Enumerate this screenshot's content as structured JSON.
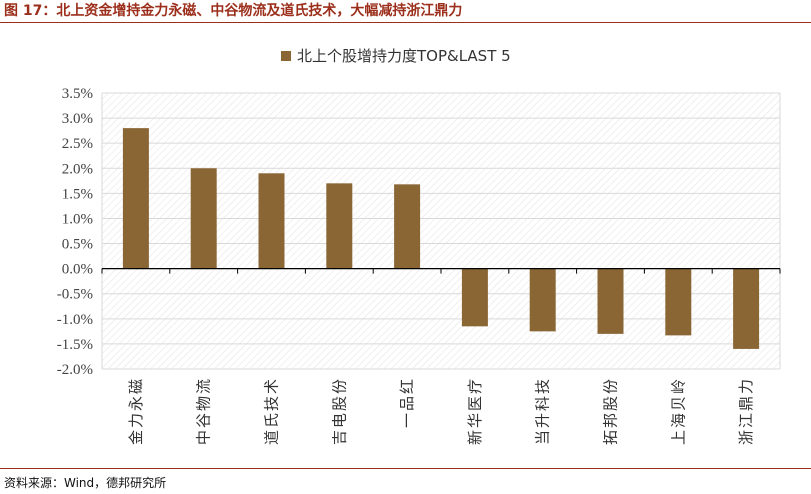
{
  "figure": {
    "title": "图 17：北上资金增持金力永磁、中谷物流及道氏技术，大幅减持浙江鼎力",
    "source": "资料来源：Wind，德邦研究所"
  },
  "colors": {
    "title": "#9c2f1b",
    "bar": "#8b6635",
    "grid": "#d9d9d9",
    "hatch": "#e6e6e6"
  },
  "chart_data": {
    "type": "bar",
    "title": "",
    "categories": [
      "金力永磁",
      "中谷物流",
      "道氏技术",
      "吉电股份",
      "一品红",
      "新华医疗",
      "当升科技",
      "拓邦股份",
      "上海贝岭",
      "浙江鼎力"
    ],
    "series": [
      {
        "name": "北上个股增持力度TOP&LAST 5",
        "values": [
          2.8,
          2.0,
          1.9,
          1.7,
          1.68,
          -1.15,
          -1.25,
          -1.3,
          -1.33,
          -1.6
        ]
      }
    ],
    "yticks": [
      "3.5%",
      "3.0%",
      "2.5%",
      "2.0%",
      "1.5%",
      "1.0%",
      "0.5%",
      "0.0%",
      "-0.5%",
      "-1.0%",
      "-1.5%",
      "-2.0%"
    ],
    "ylim": [
      -2.0,
      3.5
    ],
    "y_unit": "%",
    "grid": true,
    "legend_position": "top-center",
    "xlabel": "",
    "ylabel": ""
  }
}
